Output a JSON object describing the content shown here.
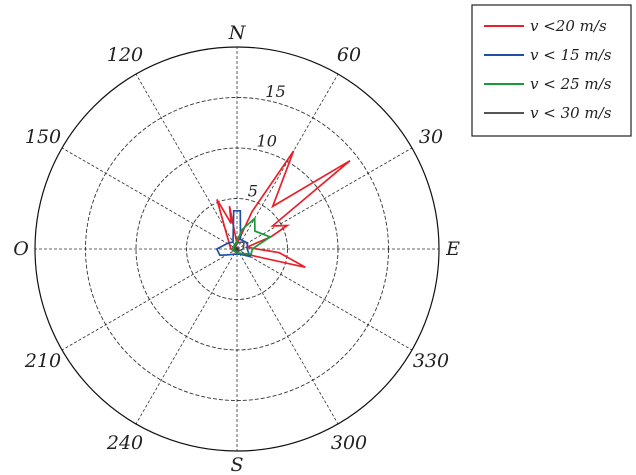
{
  "chart_data": {
    "type": "polar-line",
    "rlim": [
      0,
      20
    ],
    "rings": [
      5,
      10,
      15,
      20
    ],
    "ring_labels": [
      {
        "value": 5,
        "text": "5"
      },
      {
        "value": 10,
        "text": "10"
      },
      {
        "value": 15,
        "text": "15"
      }
    ],
    "angle_labels": [
      {
        "angle": 90,
        "text": "N"
      },
      {
        "angle": 60,
        "text": "60"
      },
      {
        "angle": 30,
        "text": "30"
      },
      {
        "angle": 0,
        "text": "E"
      },
      {
        "angle": 330,
        "text": "330"
      },
      {
        "angle": 300,
        "text": "300"
      },
      {
        "angle": 270,
        "text": "S"
      },
      {
        "angle": 240,
        "text": "240"
      },
      {
        "angle": 210,
        "text": "210"
      },
      {
        "angle": 180,
        "text": "O"
      },
      {
        "angle": 150,
        "text": "150"
      },
      {
        "angle": 120,
        "text": "120"
      }
    ],
    "grid": true,
    "legend_position": "top-right",
    "series": [
      {
        "name": "v <20 m/s",
        "color": "#e8202a",
        "points": [
          [
            0,
            2.0
          ],
          [
            10,
            1.0
          ],
          [
            20,
            3.6
          ],
          [
            25,
            5.5
          ],
          [
            33,
            4.2
          ],
          [
            38,
            14.2
          ],
          [
            50,
            5.5
          ],
          [
            60,
            11.2
          ],
          [
            68,
            4.0
          ],
          [
            90,
            0.5
          ],
          [
            100,
            4.3
          ],
          [
            103,
            2.6
          ],
          [
            112,
            5.3
          ],
          [
            125,
            1.8
          ],
          [
            180,
            0.6
          ],
          [
            270,
            0.4
          ],
          [
            300,
            0.5
          ],
          [
            330,
            1.0
          ],
          [
            345,
            7.0
          ],
          [
            355,
            4.2
          ],
          [
            0,
            2.0
          ]
        ]
      },
      {
        "name": "v < 15 m/s",
        "color": "#1f4fa8",
        "points": [
          [
            0,
            1.0
          ],
          [
            30,
            1.2
          ],
          [
            70,
            1.0
          ],
          [
            85,
            3.8
          ],
          [
            95,
            3.8
          ],
          [
            120,
            0.8
          ],
          [
            150,
            1.1
          ],
          [
            180,
            2.0
          ],
          [
            200,
            1.8
          ],
          [
            215,
            1.0
          ],
          [
            240,
            0.6
          ],
          [
            300,
            0.6
          ],
          [
            330,
            1.5
          ],
          [
            0,
            1.0
          ]
        ]
      },
      {
        "name": "v < 25 m/s",
        "color": "#1a9a3a",
        "points": [
          [
            0,
            1.5
          ],
          [
            20,
            3.5
          ],
          [
            45,
            2.5
          ],
          [
            60,
            3.5
          ],
          [
            75,
            2.0
          ],
          [
            90,
            0.8
          ],
          [
            180,
            0.5
          ],
          [
            270,
            0.4
          ],
          [
            340,
            1.5
          ],
          [
            0,
            1.5
          ]
        ]
      },
      {
        "name": "v < 30 m/s",
        "color": "#555555",
        "points": [
          [
            0,
            0.6
          ],
          [
            45,
            1.0
          ],
          [
            90,
            0.6
          ],
          [
            180,
            0.3
          ],
          [
            270,
            0.3
          ],
          [
            0,
            0.6
          ]
        ]
      }
    ]
  }
}
